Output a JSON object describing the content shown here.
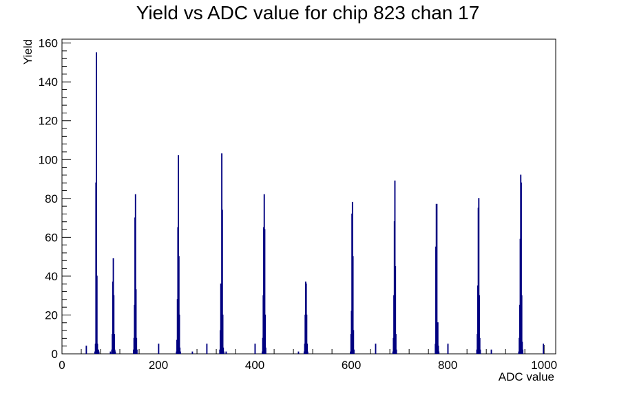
{
  "chart_data": {
    "type": "bar",
    "title": "Yield vs ADC value for chip 823 chan 17",
    "xlabel": "ADC value",
    "ylabel": "Yield",
    "xlim": [
      0,
      1024
    ],
    "ylim": [
      0,
      162
    ],
    "x_ticks": [
      0,
      200,
      400,
      600,
      800,
      1000
    ],
    "y_ticks": [
      0,
      20,
      40,
      60,
      80,
      100,
      120,
      140,
      160
    ],
    "grid": false,
    "legend": "none",
    "color": "#000080",
    "series": [
      {
        "x": [
          68,
          69,
          70,
          71,
          72,
          73,
          74,
          75,
          76,
          103,
          104,
          105,
          106,
          107,
          108,
          109,
          110,
          111,
          148,
          149,
          150,
          151,
          152,
          153,
          154,
          155,
          156,
          237,
          238,
          239,
          240,
          241,
          242,
          243,
          244,
          245,
          246,
          327,
          328,
          329,
          330,
          331,
          332,
          333,
          334,
          335,
          415,
          416,
          417,
          418,
          419,
          420,
          421,
          422,
          423,
          502,
          503,
          504,
          505,
          506,
          507,
          508,
          509,
          598,
          599,
          600,
          601,
          602,
          603,
          604,
          605,
          606,
          686,
          687,
          688,
          689,
          690,
          691,
          692,
          693,
          694,
          774,
          775,
          776,
          777,
          778,
          779,
          780,
          781,
          782,
          860,
          861,
          862,
          863,
          864,
          865,
          866,
          867,
          868,
          947,
          948,
          949,
          950,
          951,
          952,
          953,
          954,
          955,
          956,
          50,
          100,
          200,
          270,
          300,
          340,
          400,
          490,
          650,
          800,
          890,
          998
        ],
        "y": [
          1,
          5,
          88,
          155,
          40,
          5,
          1,
          2,
          1,
          2,
          10,
          37,
          49,
          30,
          10,
          2,
          1,
          0,
          2,
          8,
          25,
          70,
          82,
          33,
          8,
          2,
          0,
          1,
          7,
          28,
          65,
          102,
          50,
          20,
          3,
          1,
          0,
          2,
          12,
          36,
          24,
          103,
          74,
          20,
          3,
          1,
          1,
          8,
          30,
          65,
          82,
          64,
          20,
          3,
          0,
          1,
          5,
          20,
          37,
          36,
          20,
          5,
          1,
          1,
          10,
          22,
          72,
          78,
          50,
          12,
          2,
          0,
          1,
          8,
          30,
          68,
          89,
          45,
          10,
          2,
          0,
          5,
          55,
          77,
          77,
          10,
          16,
          4,
          1,
          0,
          2,
          10,
          35,
          75,
          80,
          30,
          8,
          2,
          0,
          1,
          8,
          25,
          59,
          92,
          88,
          30,
          6,
          2,
          0,
          4,
          1,
          5,
          1,
          5,
          1,
          5,
          1,
          5,
          5,
          2,
          5
        ]
      }
    ]
  }
}
